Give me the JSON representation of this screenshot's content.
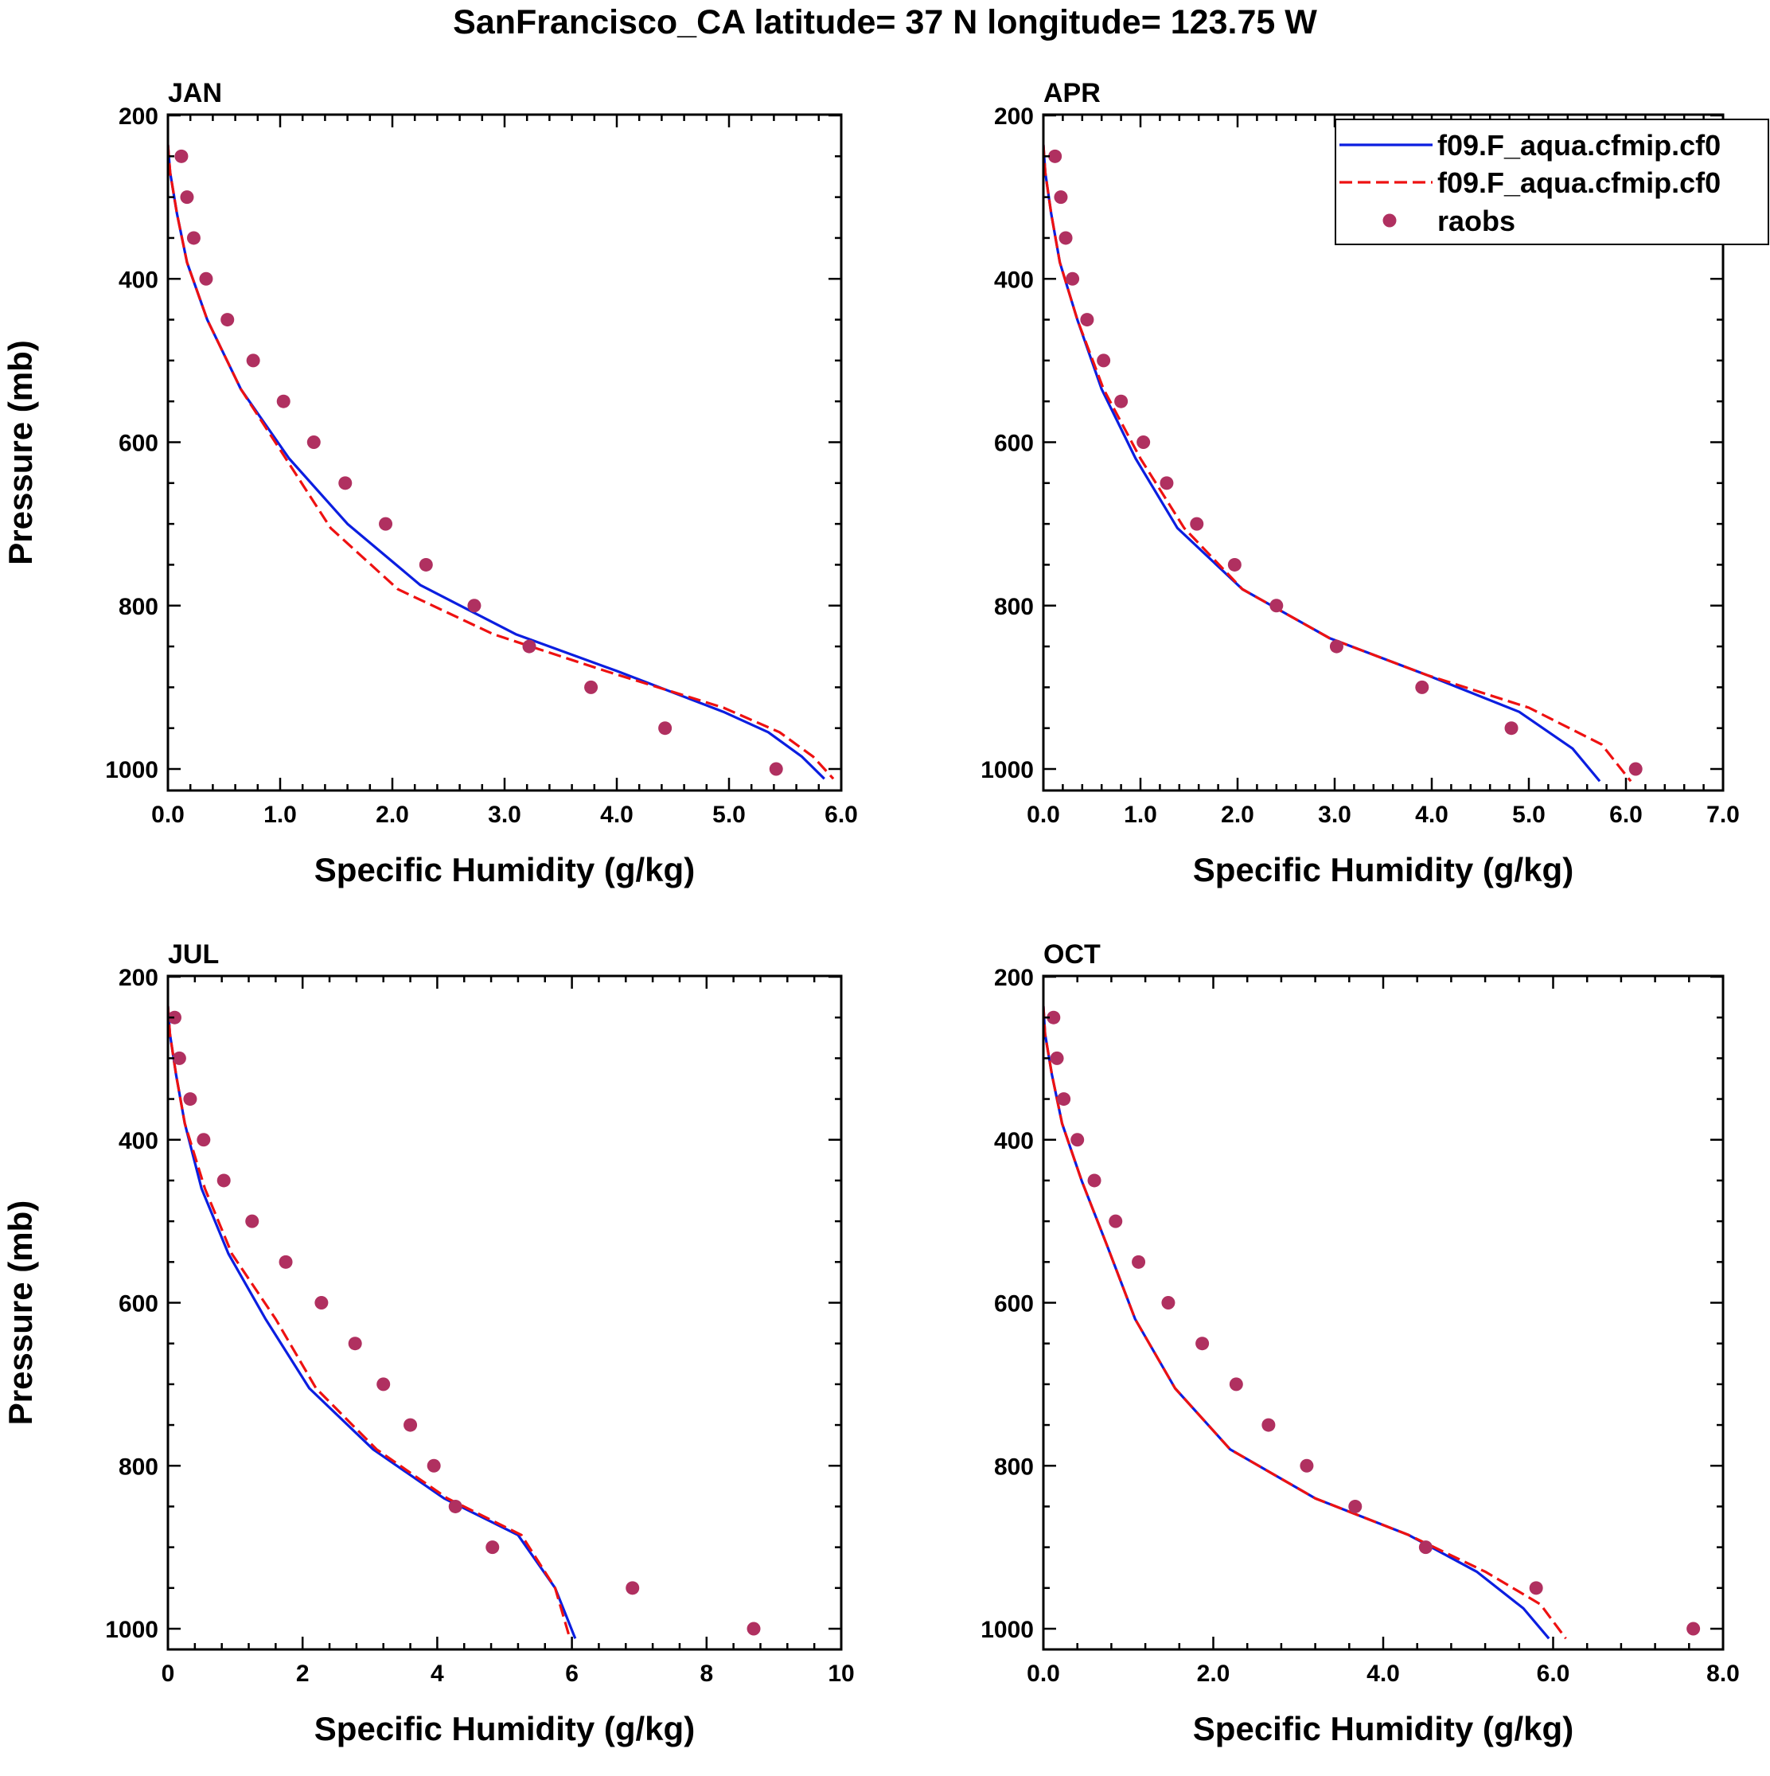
{
  "figure_title": "SanFrancisco_CA  latitude= 37 N longitude= 123.75 W",
  "colors": {
    "model_a": "#0b1ee0",
    "model_b": "#ee1111",
    "obs": "#b03060",
    "frame": "#000000"
  },
  "legend": {
    "entries": [
      {
        "label": "f09.F_aqua.cfmip.cf0",
        "style": "solid",
        "color": "#0b1ee0"
      },
      {
        "label": "f09.F_aqua.cfmip.cf0",
        "style": "dashed",
        "color": "#ee1111"
      },
      {
        "label": "raobs",
        "style": "marker",
        "color": "#b03060"
      }
    ]
  },
  "chart_data": [
    {
      "type": "line",
      "panel": "JAN",
      "xlabel": "Specific Humidity (g/kg)",
      "ylabel": "Pressure (mb)",
      "xlim": [
        0,
        6
      ],
      "ylim": [
        200,
        1025
      ],
      "y_reversed": true,
      "xticks": [
        0,
        1,
        2,
        3,
        4,
        5,
        6
      ],
      "xtick_labels": [
        "0.0",
        "1.0",
        "2.0",
        "3.0",
        "4.0",
        "5.0",
        "6.0"
      ],
      "yticks": [
        200,
        400,
        600,
        800,
        1000
      ],
      "ytick_labels": [
        "200",
        "400",
        "600",
        "800",
        "1000"
      ],
      "series": [
        {
          "name": "f09.F_aqua.cfmip.cf0 (solid)",
          "style": "solid",
          "x": [
            0.0,
            0.02,
            0.08,
            0.17,
            0.35,
            0.65,
            1.08,
            1.6,
            2.25,
            3.1,
            4.0,
            4.95,
            5.35,
            5.65,
            5.85
          ],
          "y": [
            236,
            270,
            320,
            380,
            450,
            535,
            620,
            700,
            775,
            835,
            880,
            930,
            955,
            985,
            1012
          ]
        },
        {
          "name": "f09.F_aqua.cfmip.cf0 (dashed)",
          "style": "dashed",
          "x": [
            0.0,
            0.02,
            0.08,
            0.17,
            0.35,
            0.65,
            1.05,
            1.45,
            2.05,
            2.9,
            3.9,
            4.95,
            5.45,
            5.75,
            5.93
          ],
          "y": [
            236,
            270,
            320,
            380,
            450,
            535,
            620,
            705,
            780,
            835,
            880,
            925,
            955,
            985,
            1012
          ]
        },
        {
          "name": "raobs",
          "style": "marker",
          "x": [
            0.12,
            0.17,
            0.23,
            0.34,
            0.53,
            0.76,
            1.03,
            1.3,
            1.58,
            1.94,
            2.3,
            2.73,
            3.22,
            3.77,
            4.43,
            5.42
          ],
          "y": [
            250,
            300,
            350,
            400,
            450,
            500,
            550,
            600,
            650,
            700,
            750,
            800,
            850,
            900,
            950,
            1000
          ]
        }
      ]
    },
    {
      "type": "line",
      "panel": "APR",
      "xlabel": "Specific Humidity (g/kg)",
      "ylabel": "",
      "xlim": [
        0,
        7
      ],
      "ylim": [
        200,
        1025
      ],
      "y_reversed": true,
      "xticks": [
        0,
        1,
        2,
        3,
        4,
        5,
        6,
        7
      ],
      "xtick_labels": [
        "0.0",
        "1.0",
        "2.0",
        "3.0",
        "4.0",
        "5.0",
        "6.0",
        "7.0"
      ],
      "yticks": [
        200,
        400,
        600,
        800,
        1000
      ],
      "ytick_labels": [
        "200",
        "400",
        "600",
        "800",
        "1000"
      ],
      "series": [
        {
          "name": "f09.F_aqua.cfmip.cf0 (solid)",
          "style": "solid",
          "x": [
            0.0,
            0.02,
            0.08,
            0.17,
            0.35,
            0.6,
            0.95,
            1.38,
            2.05,
            2.95,
            3.95,
            4.9,
            5.45,
            5.73
          ],
          "y": [
            236,
            270,
            320,
            380,
            450,
            535,
            620,
            705,
            780,
            840,
            885,
            930,
            975,
            1015
          ]
        },
        {
          "name": "f09.F_aqua.cfmip.cf0 (dashed)",
          "style": "dashed",
          "x": [
            0.0,
            0.02,
            0.08,
            0.17,
            0.35,
            0.62,
            1.0,
            1.45,
            2.05,
            2.95,
            3.95,
            5.0,
            5.75,
            6.05
          ],
          "y": [
            236,
            270,
            320,
            380,
            450,
            535,
            620,
            705,
            780,
            840,
            885,
            925,
            970,
            1015
          ]
        },
        {
          "name": "raobs",
          "style": "marker",
          "x": [
            0.12,
            0.18,
            0.23,
            0.3,
            0.45,
            0.62,
            0.8,
            1.03,
            1.27,
            1.58,
            1.97,
            2.4,
            3.02,
            3.9,
            4.82,
            6.1
          ],
          "y": [
            250,
            300,
            350,
            400,
            450,
            500,
            550,
            600,
            650,
            700,
            750,
            800,
            850,
            900,
            950,
            1000
          ]
        }
      ]
    },
    {
      "type": "line",
      "panel": "JUL",
      "xlabel": "Specific Humidity (g/kg)",
      "ylabel": "Pressure (mb)",
      "xlim": [
        0,
        10
      ],
      "ylim": [
        200,
        1025
      ],
      "y_reversed": true,
      "xticks": [
        0,
        2,
        4,
        6,
        8,
        10
      ],
      "xtick_labels": [
        "0",
        "2",
        "4",
        "6",
        "8",
        "10"
      ],
      "yticks": [
        200,
        400,
        600,
        800,
        1000
      ],
      "ytick_labels": [
        "200",
        "400",
        "600",
        "800",
        "1000"
      ],
      "series": [
        {
          "name": "f09.F_aqua.cfmip.cf0 (solid)",
          "style": "solid",
          "x": [
            0.0,
            0.03,
            0.12,
            0.25,
            0.5,
            0.9,
            1.45,
            2.1,
            3.05,
            4.1,
            5.2,
            5.75,
            6.05
          ],
          "y": [
            236,
            270,
            320,
            380,
            460,
            540,
            620,
            705,
            780,
            840,
            885,
            950,
            1012
          ]
        },
        {
          "name": "f09.F_aqua.cfmip.cf0 (dashed)",
          "style": "dashed",
          "x": [
            0.0,
            0.03,
            0.12,
            0.25,
            0.55,
            0.95,
            1.6,
            2.2,
            3.1,
            4.15,
            5.25,
            5.75,
            5.97
          ],
          "y": [
            236,
            270,
            320,
            380,
            460,
            540,
            620,
            705,
            780,
            840,
            885,
            950,
            1012
          ]
        },
        {
          "name": "raobs",
          "style": "marker",
          "x": [
            0.1,
            0.17,
            0.33,
            0.53,
            0.83,
            1.25,
            1.75,
            2.28,
            2.78,
            3.2,
            3.6,
            3.95,
            4.27,
            4.82,
            6.9,
            8.7
          ],
          "y": [
            250,
            300,
            350,
            400,
            450,
            500,
            550,
            600,
            650,
            700,
            750,
            800,
            850,
            900,
            950,
            1000
          ]
        }
      ]
    },
    {
      "type": "line",
      "panel": "OCT",
      "xlabel": "Specific Humidity (g/kg)",
      "ylabel": "",
      "xlim": [
        0,
        8
      ],
      "ylim": [
        200,
        1025
      ],
      "y_reversed": true,
      "xticks": [
        0,
        2,
        4,
        6,
        8
      ],
      "xtick_labels": [
        "0.0",
        "2.0",
        "4.0",
        "6.0",
        "8.0"
      ],
      "yticks": [
        200,
        400,
        600,
        800,
        1000
      ],
      "ytick_labels": [
        "200",
        "400",
        "600",
        "800",
        "1000"
      ],
      "series": [
        {
          "name": "f09.F_aqua.cfmip.cf0 (solid)",
          "style": "solid",
          "x": [
            0.0,
            0.02,
            0.1,
            0.22,
            0.45,
            0.75,
            1.08,
            1.55,
            2.2,
            3.2,
            4.3,
            5.1,
            5.65,
            5.95
          ],
          "y": [
            236,
            270,
            320,
            380,
            450,
            530,
            620,
            705,
            780,
            840,
            885,
            930,
            975,
            1012
          ]
        },
        {
          "name": "f09.F_aqua.cfmip.cf0 (dashed)",
          "style": "dashed",
          "x": [
            0.0,
            0.02,
            0.1,
            0.22,
            0.45,
            0.75,
            1.08,
            1.55,
            2.2,
            3.2,
            4.3,
            5.2,
            5.85,
            6.15
          ],
          "y": [
            236,
            270,
            320,
            380,
            450,
            530,
            620,
            705,
            780,
            840,
            885,
            930,
            970,
            1012
          ]
        },
        {
          "name": "raobs",
          "style": "marker",
          "x": [
            0.12,
            0.16,
            0.24,
            0.4,
            0.6,
            0.85,
            1.12,
            1.47,
            1.87,
            2.27,
            2.65,
            3.1,
            3.67,
            4.5,
            5.8,
            7.65
          ],
          "y": [
            250,
            300,
            350,
            400,
            450,
            500,
            550,
            600,
            650,
            700,
            750,
            800,
            850,
            900,
            950,
            1000
          ]
        }
      ]
    }
  ]
}
